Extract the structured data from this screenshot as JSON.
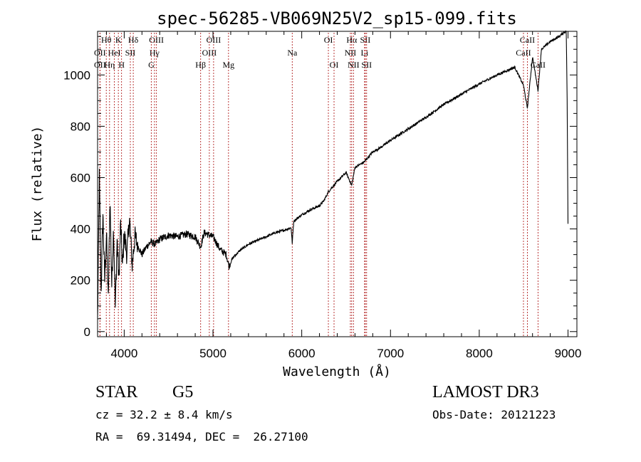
{
  "chart_data": {
    "type": "line",
    "title": "spec-56285-VB069N25V2_sp15-099.fits",
    "xlabel": "Wavelength (Å)",
    "ylabel": "Flux (relative)",
    "xlim": [
      3700,
      9100
    ],
    "ylim": [
      -20,
      1170
    ],
    "xticks": [
      4000,
      5000,
      6000,
      7000,
      8000,
      9000
    ],
    "yticks": [
      0,
      200,
      400,
      600,
      800,
      1000
    ],
    "line_color": "#000000",
    "marker_color": "#b22222",
    "spectrum_anchors": [
      [
        3700,
        40
      ],
      [
        3720,
        600
      ],
      [
        3740,
        150
      ],
      [
        3760,
        460
      ],
      [
        3780,
        200
      ],
      [
        3800,
        380
      ],
      [
        3820,
        120
      ],
      [
        3840,
        520
      ],
      [
        3860,
        180
      ],
      [
        3880,
        410
      ],
      [
        3900,
        90
      ],
      [
        3920,
        360
      ],
      [
        3940,
        200
      ],
      [
        3960,
        420
      ],
      [
        3980,
        250
      ],
      [
        4000,
        380
      ],
      [
        4030,
        300
      ],
      [
        4060,
        440
      ],
      [
        4090,
        260
      ],
      [
        4120,
        370
      ],
      [
        4160,
        330
      ],
      [
        4200,
        300
      ],
      [
        4250,
        330
      ],
      [
        4300,
        350
      ],
      [
        4350,
        340
      ],
      [
        4400,
        360
      ],
      [
        4500,
        375
      ],
      [
        4600,
        370
      ],
      [
        4700,
        380
      ],
      [
        4800,
        370
      ],
      [
        4860,
        330
      ],
      [
        4900,
        385
      ],
      [
        5000,
        370
      ],
      [
        5080,
        320
      ],
      [
        5150,
        300
      ],
      [
        5180,
        255
      ],
      [
        5220,
        285
      ],
      [
        5300,
        315
      ],
      [
        5400,
        340
      ],
      [
        5500,
        355
      ],
      [
        5600,
        370
      ],
      [
        5700,
        385
      ],
      [
        5800,
        395
      ],
      [
        5880,
        405
      ],
      [
        5893,
        345
      ],
      [
        5910,
        430
      ],
      [
        6000,
        455
      ],
      [
        6100,
        475
      ],
      [
        6200,
        490
      ],
      [
        6250,
        510
      ],
      [
        6300,
        545
      ],
      [
        6400,
        585
      ],
      [
        6500,
        620
      ],
      [
        6563,
        570
      ],
      [
        6600,
        640
      ],
      [
        6700,
        660
      ],
      [
        6800,
        700
      ],
      [
        6900,
        720
      ],
      [
        7000,
        745
      ],
      [
        7200,
        790
      ],
      [
        7400,
        835
      ],
      [
        7600,
        885
      ],
      [
        7800,
        925
      ],
      [
        8000,
        965
      ],
      [
        8200,
        1000
      ],
      [
        8400,
        1030
      ],
      [
        8498,
        960
      ],
      [
        8542,
        870
      ],
      [
        8600,
        1070
      ],
      [
        8662,
        940
      ],
      [
        8700,
        1100
      ],
      [
        8800,
        1130
      ],
      [
        8900,
        1150
      ],
      [
        8950,
        1165
      ],
      [
        8980,
        1170
      ],
      [
        8990,
        900
      ],
      [
        9000,
        420
      ]
    ],
    "line_markers": [
      {
        "label": "Hθ",
        "x": 3798,
        "row": 0
      },
      {
        "label": "OII",
        "x": 3727,
        "row": 1
      },
      {
        "label": "OII",
        "x": 3727,
        "row": 2
      },
      {
        "label": "K",
        "x": 3934,
        "row": 0
      },
      {
        "label": "HeI",
        "x": 3889,
        "row": 1
      },
      {
        "label": "Hη",
        "x": 3835,
        "row": 2
      },
      {
        "label": "SII",
        "x": 4069,
        "row": 1
      },
      {
        "label": "H",
        "x": 3970,
        "row": 2
      },
      {
        "label": "Hδ",
        "x": 4102,
        "row": 0
      },
      {
        "label": "OIII",
        "x": 4363,
        "row": 0
      },
      {
        "label": "Hγ",
        "x": 4341,
        "row": 1
      },
      {
        "label": "G",
        "x": 4305,
        "row": 2
      },
      {
        "label": "Hβ",
        "x": 4861,
        "row": 2
      },
      {
        "label": "OIII",
        "x": 5007,
        "row": 0
      },
      {
        "label": "OIII",
        "x": 4959,
        "row": 1
      },
      {
        "label": "Mg",
        "x": 5175,
        "row": 2
      },
      {
        "label": "Na",
        "x": 5893,
        "row": 1
      },
      {
        "label": "OI",
        "x": 6300,
        "row": 0
      },
      {
        "label": "OI",
        "x": 6364,
        "row": 2
      },
      {
        "label": "Hα",
        "x": 6563,
        "row": 0
      },
      {
        "label": "NII",
        "x": 6548,
        "row": 1
      },
      {
        "label": "NII",
        "x": 6583,
        "row": 2
      },
      {
        "label": "SII",
        "x": 6716,
        "row": 0
      },
      {
        "label": "Li",
        "x": 6708,
        "row": 1
      },
      {
        "label": "SII",
        "x": 6731,
        "row": 2
      },
      {
        "label": "CaII",
        "x": 8542,
        "row": 0
      },
      {
        "label": "CaII",
        "x": 8498,
        "row": 1
      },
      {
        "label": "CaII",
        "x": 8662,
        "row": 2
      }
    ]
  },
  "info": {
    "class_label": "STAR",
    "subclass": "G5",
    "survey": "LAMOST DR3",
    "redshift": "cz = 32.2 ± 8.4 km/s",
    "obs_date": "Obs-Date: 20121223",
    "coords": "RA =  69.31494, DEC =  26.27100"
  }
}
